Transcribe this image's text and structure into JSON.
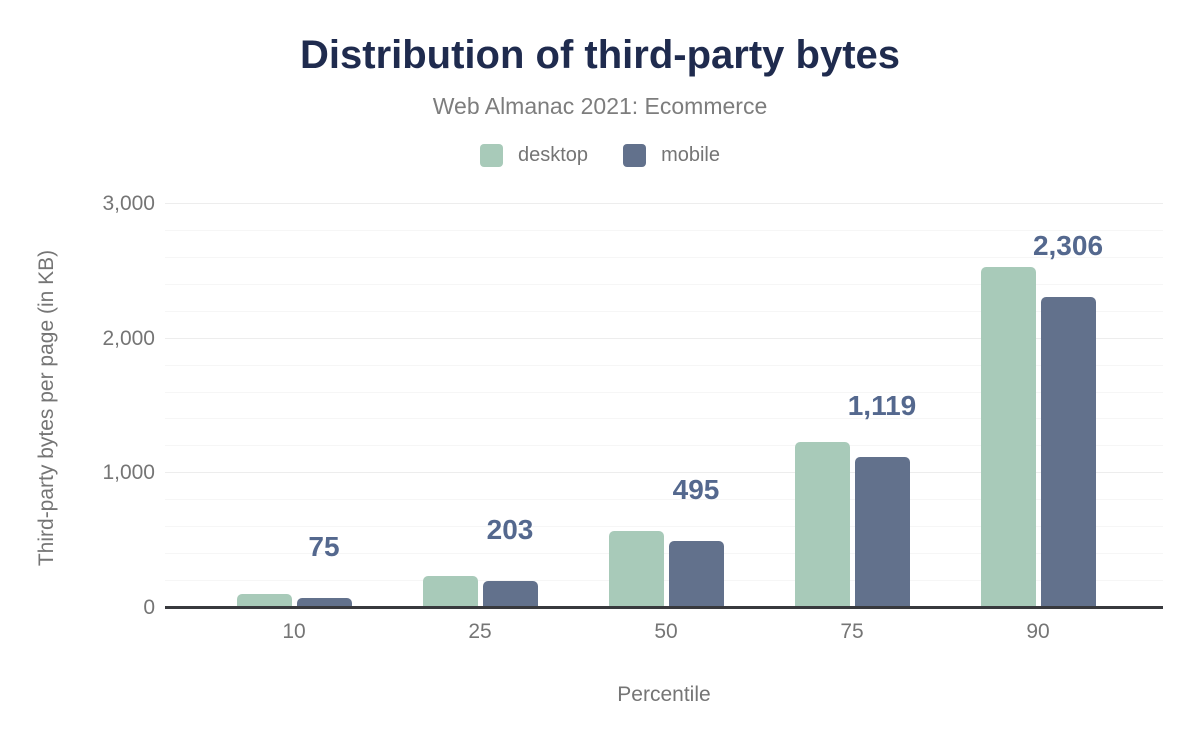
{
  "header": {
    "title": "Distribution of third-party bytes",
    "subtitle": "Web Almanac 2021: Ecommerce"
  },
  "legend": {
    "items": [
      {
        "label": "desktop",
        "color": "#a8cab9"
      },
      {
        "label": "mobile",
        "color": "#62718c"
      }
    ]
  },
  "chart_data": {
    "type": "bar",
    "title": "Distribution of third-party bytes",
    "subtitle": "Web Almanac 2021: Ecommerce",
    "xlabel": "Percentile",
    "ylabel": "Third-party bytes per page (in KB)",
    "categories": [
      "10",
      "25",
      "50",
      "75",
      "90"
    ],
    "series": [
      {
        "name": "desktop",
        "color": "#a8cab9",
        "values": [
          105,
          240,
          570,
          1230,
          2530
        ]
      },
      {
        "name": "mobile",
        "color": "#62718c",
        "values": [
          75,
          203,
          495,
          1119,
          2306
        ]
      }
    ],
    "data_labels": {
      "series": "mobile",
      "values": [
        "75",
        "203",
        "495",
        "1,119",
        "2,306"
      ]
    },
    "ylim": [
      0,
      3000
    ],
    "yticks": [
      0,
      1000,
      2000,
      3000
    ],
    "ytick_labels": [
      "0",
      "1,000",
      "2,000",
      "3,000"
    ],
    "grid": {
      "minor_step": 200,
      "major_step": 1000,
      "visible": true
    },
    "legend_position": "top"
  },
  "colors": {
    "title": "#1f2b4e",
    "muted_text": "#757575",
    "data_label": "#54688e",
    "axis_line": "#38393d",
    "grid_major": "#ededed",
    "grid_minor": "#f6f6f6",
    "background": "#ffffff"
  }
}
